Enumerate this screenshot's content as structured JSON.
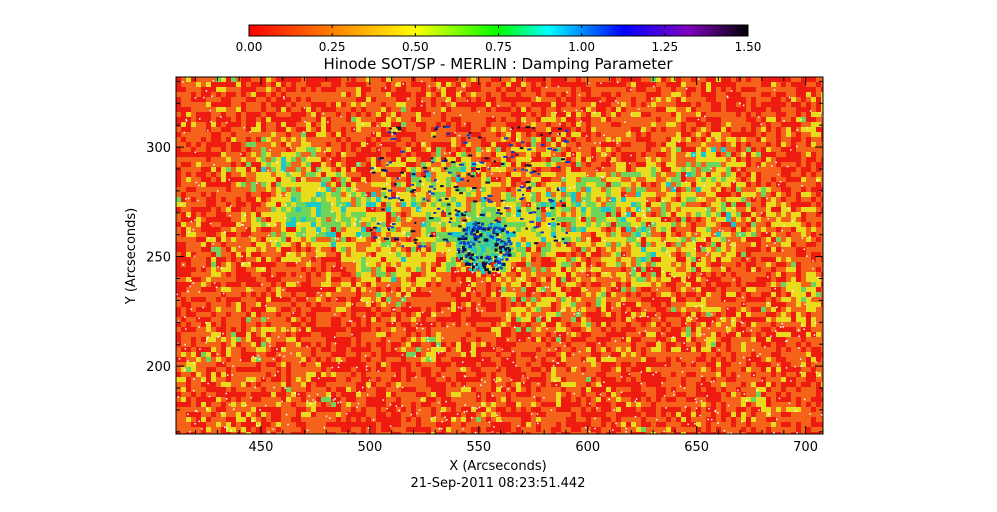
{
  "colorbar": {
    "ticks": [
      "0.00",
      "0.25",
      "0.50",
      "0.75",
      "1.00",
      "1.25",
      "1.50"
    ],
    "range": [
      0,
      1.5
    ],
    "colormap": [
      "#ff0000",
      "#ffff00",
      "#00ff00",
      "#00ffff",
      "#0000ff",
      "#8000c0",
      "#000000"
    ]
  },
  "title": "Hinode SOT/SP - MERLIN : Damping Parameter",
  "axes": {
    "xlabel": "X (Arcseconds)",
    "ylabel": "Y (Arcseconds)",
    "xticks": [
      "450",
      "500",
      "550",
      "600",
      "650",
      "700"
    ],
    "yticks": [
      "200",
      "250",
      "300"
    ],
    "xlim": [
      411,
      708
    ],
    "ylim": [
      169,
      332
    ]
  },
  "timestamp": "21-Sep-2011 08:23:51.442",
  "map": {
    "colors": {
      "red": "#ee1c10",
      "orange": "#f5631a",
      "yellow": "#e8dc1c",
      "green": "#6fd45a",
      "cyan": "#1cc8c8",
      "blue": "#1038c8",
      "dark": "#10103c",
      "white": "#ffffff"
    }
  }
}
